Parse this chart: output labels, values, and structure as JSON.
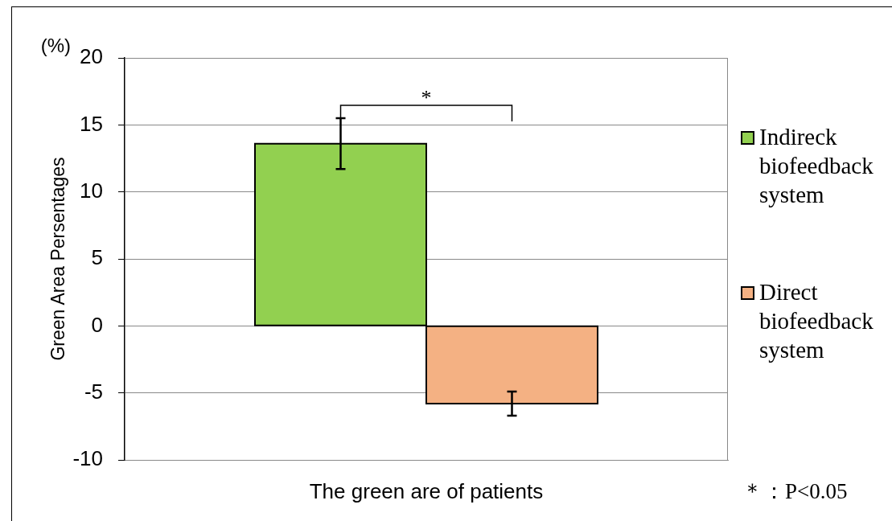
{
  "chart_data": {
    "type": "bar",
    "ylabel": "Green Area Persentages",
    "categories": [
      "The green are of patients"
    ],
    "series": [
      {
        "name": "Indireck biofeedback system",
        "color": "#92d050",
        "values": [
          13.6
        ],
        "errors": [
          1.9
        ]
      },
      {
        "name": "Direct biofeedback system",
        "color": "#f4b183",
        "values": [
          -5.8
        ],
        "errors": [
          0.9
        ]
      }
    ],
    "ylim": [
      -10,
      20
    ],
    "yticks": [
      -10,
      -5,
      0,
      5,
      10,
      15,
      20
    ],
    "grid": "y",
    "legend": "right",
    "annotations": [
      "(%)",
      "*",
      "＊：P<0.05"
    ]
  }
}
